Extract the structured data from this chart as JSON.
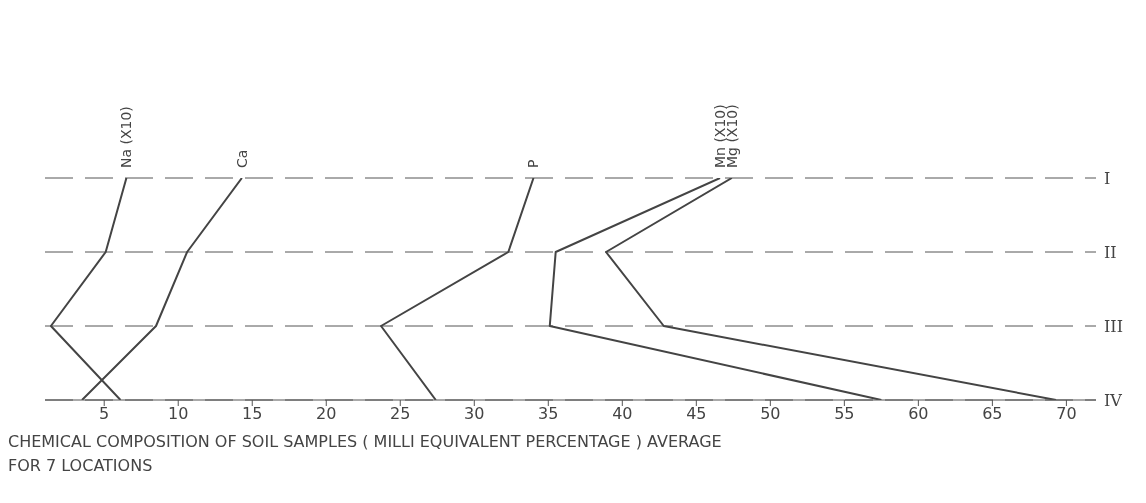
{
  "chart_data": {
    "type": "line",
    "xlabel": "CHEMICAL COMPOSITION OF SOIL SAMPLES ( MILLI EQUIVALENT PERCENTAGE ) AVERAGE FOR 7 LOCATIONS",
    "orientation": "horizontal",
    "categories": [
      "I",
      "II",
      "III",
      "IV"
    ],
    "xlim": [
      1,
      72
    ],
    "xticks": [
      5,
      10,
      15,
      20,
      25,
      30,
      35,
      40,
      45,
      50,
      55,
      60,
      65,
      70
    ],
    "grid": "y",
    "legend": false,
    "marker": "none",
    "series": [
      {
        "name": "Na (X10)",
        "color": "#444444",
        "values": [
          6.5,
          5.1,
          1.4,
          6.1
        ]
      },
      {
        "name": "Ca",
        "color": "#444444",
        "values": [
          14.3,
          10.6,
          8.5,
          3.5
        ]
      },
      {
        "name": "P",
        "color": "#444444",
        "values": [
          34,
          32.3,
          23.7,
          27.4
        ]
      },
      {
        "name": "Mn (X10)",
        "color": "#444444",
        "values": [
          46.6,
          35.5,
          35.1,
          57.5
        ]
      },
      {
        "name": "Mg (X10)",
        "color": "#444444",
        "values": [
          47.4,
          38.9,
          42.8,
          69.3
        ]
      }
    ]
  }
}
